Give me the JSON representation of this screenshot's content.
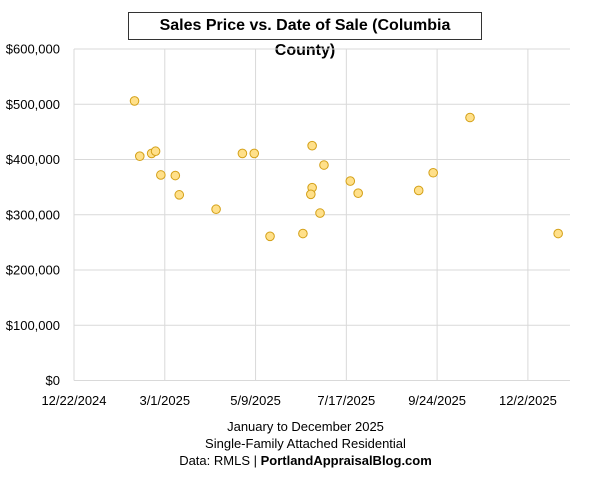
{
  "chart_data": {
    "type": "scatter",
    "title": "Sales Price vs. Date of Sale (Columbia County)",
    "xlabel_lines": [
      "January to December 2025",
      "Single-Family Attached Residential"
    ],
    "source_prefix": "Data: RMLS | ",
    "source_site": "PortlandAppraisalBlog.com",
    "xlim": [
      "2024-12-22",
      "2026-01-03"
    ],
    "ylim": [
      0,
      600000
    ],
    "x_ticks": [
      {
        "date": "2024-12-22",
        "label": "12/22/2024"
      },
      {
        "date": "2025-03-01",
        "label": "3/1/2025"
      },
      {
        "date": "2025-05-09",
        "label": "5/9/2025"
      },
      {
        "date": "2025-07-17",
        "label": "7/17/2025"
      },
      {
        "date": "2025-09-24",
        "label": "9/24/2025"
      },
      {
        "date": "2025-12-02",
        "label": "12/2/2025"
      }
    ],
    "y_ticks": [
      {
        "value": 0,
        "label": "$0"
      },
      {
        "value": 100000,
        "label": "$100,000"
      },
      {
        "value": 200000,
        "label": "$200,000"
      },
      {
        "value": 300000,
        "label": "$300,000"
      },
      {
        "value": 400000,
        "label": "$400,000"
      },
      {
        "value": 500000,
        "label": "$500,000"
      },
      {
        "value": 600000,
        "label": "$600,000"
      }
    ],
    "grid": true,
    "marker_fill": "#FFE08A",
    "marker_stroke": "#D4A017",
    "points": [
      {
        "x": "2025-02-06",
        "y": 506000
      },
      {
        "x": "2025-02-10",
        "y": 406000
      },
      {
        "x": "2025-02-19",
        "y": 411000
      },
      {
        "x": "2025-02-22",
        "y": 415000
      },
      {
        "x": "2025-02-26",
        "y": 372000
      },
      {
        "x": "2025-03-09",
        "y": 371000
      },
      {
        "x": "2025-03-12",
        "y": 336000
      },
      {
        "x": "2025-04-09",
        "y": 310000
      },
      {
        "x": "2025-04-29",
        "y": 411000
      },
      {
        "x": "2025-05-08",
        "y": 411000
      },
      {
        "x": "2025-05-20",
        "y": 261000
      },
      {
        "x": "2025-06-14",
        "y": 266000
      },
      {
        "x": "2025-06-21",
        "y": 425000
      },
      {
        "x": "2025-06-21",
        "y": 349000
      },
      {
        "x": "2025-06-20",
        "y": 337000
      },
      {
        "x": "2025-06-27",
        "y": 303000
      },
      {
        "x": "2025-06-30",
        "y": 390000
      },
      {
        "x": "2025-07-20",
        "y": 361000
      },
      {
        "x": "2025-07-26",
        "y": 339000
      },
      {
        "x": "2025-09-10",
        "y": 344000
      },
      {
        "x": "2025-09-21",
        "y": 376000
      },
      {
        "x": "2025-10-19",
        "y": 476000
      },
      {
        "x": "2025-12-25",
        "y": 266000
      }
    ]
  }
}
